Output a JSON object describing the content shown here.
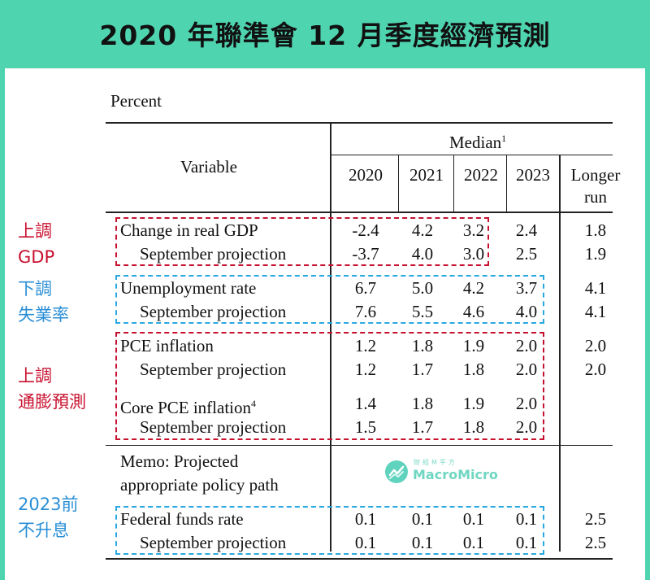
{
  "title": "2020 年聯準會 12 月季度經濟預測",
  "table": {
    "percent_label": "Percent",
    "median_label": "Median",
    "median_sup": "1",
    "variable_label": "Variable",
    "years": [
      "2020",
      "2021",
      "2022",
      "2023"
    ],
    "longer_run_line1": "Longer",
    "longer_run_line2": "run",
    "rows": [
      {
        "label": "Change in real GDP",
        "values": [
          "-2.4",
          "4.2",
          "3.2",
          "2.4"
        ],
        "longer": "1.8"
      },
      {
        "label": "September projection",
        "values": [
          "-3.7",
          "4.0",
          "3.0",
          "2.5"
        ],
        "longer": "1.9"
      },
      {
        "label": "Unemployment rate",
        "values": [
          "6.7",
          "5.0",
          "4.2",
          "3.7"
        ],
        "longer": "4.1"
      },
      {
        "label": "September projection",
        "values": [
          "7.6",
          "5.5",
          "4.6",
          "4.0"
        ],
        "longer": "4.1"
      },
      {
        "label": "PCE inflation",
        "values": [
          "1.2",
          "1.8",
          "1.9",
          "2.0"
        ],
        "longer": "2.0"
      },
      {
        "label": "September projection",
        "values": [
          "1.2",
          "1.7",
          "1.8",
          "2.0"
        ],
        "longer": "2.0"
      },
      {
        "label": "Core PCE inflation",
        "sup": "4",
        "values": [
          "1.4",
          "1.8",
          "1.9",
          "2.0"
        ],
        "longer": ""
      },
      {
        "label": "September projection",
        "values": [
          "1.5",
          "1.7",
          "1.8",
          "2.0"
        ],
        "longer": ""
      },
      {
        "label": "Federal funds rate",
        "values": [
          "0.1",
          "0.1",
          "0.1",
          "0.1"
        ],
        "longer": "2.5"
      },
      {
        "label": "September projection",
        "values": [
          "0.1",
          "0.1",
          "0.1",
          "0.1"
        ],
        "longer": "2.5"
      }
    ],
    "memo_line1": "Memo: Projected",
    "memo_line2": "appropriate policy path"
  },
  "annotations": [
    {
      "text": "上調\nGDP",
      "color": "#c8102e"
    },
    {
      "text": "下調\n失業率",
      "color": "#2a8fd6"
    },
    {
      "text": "上調\n通膨預測",
      "color": "#c8102e"
    },
    {
      "text": "2023前\n不升息",
      "color": "#2a8fd6"
    }
  ],
  "watermark": {
    "top_text": "財經M平方",
    "name": "MacroMicro",
    "icon": "macromicro-logo-icon"
  }
}
